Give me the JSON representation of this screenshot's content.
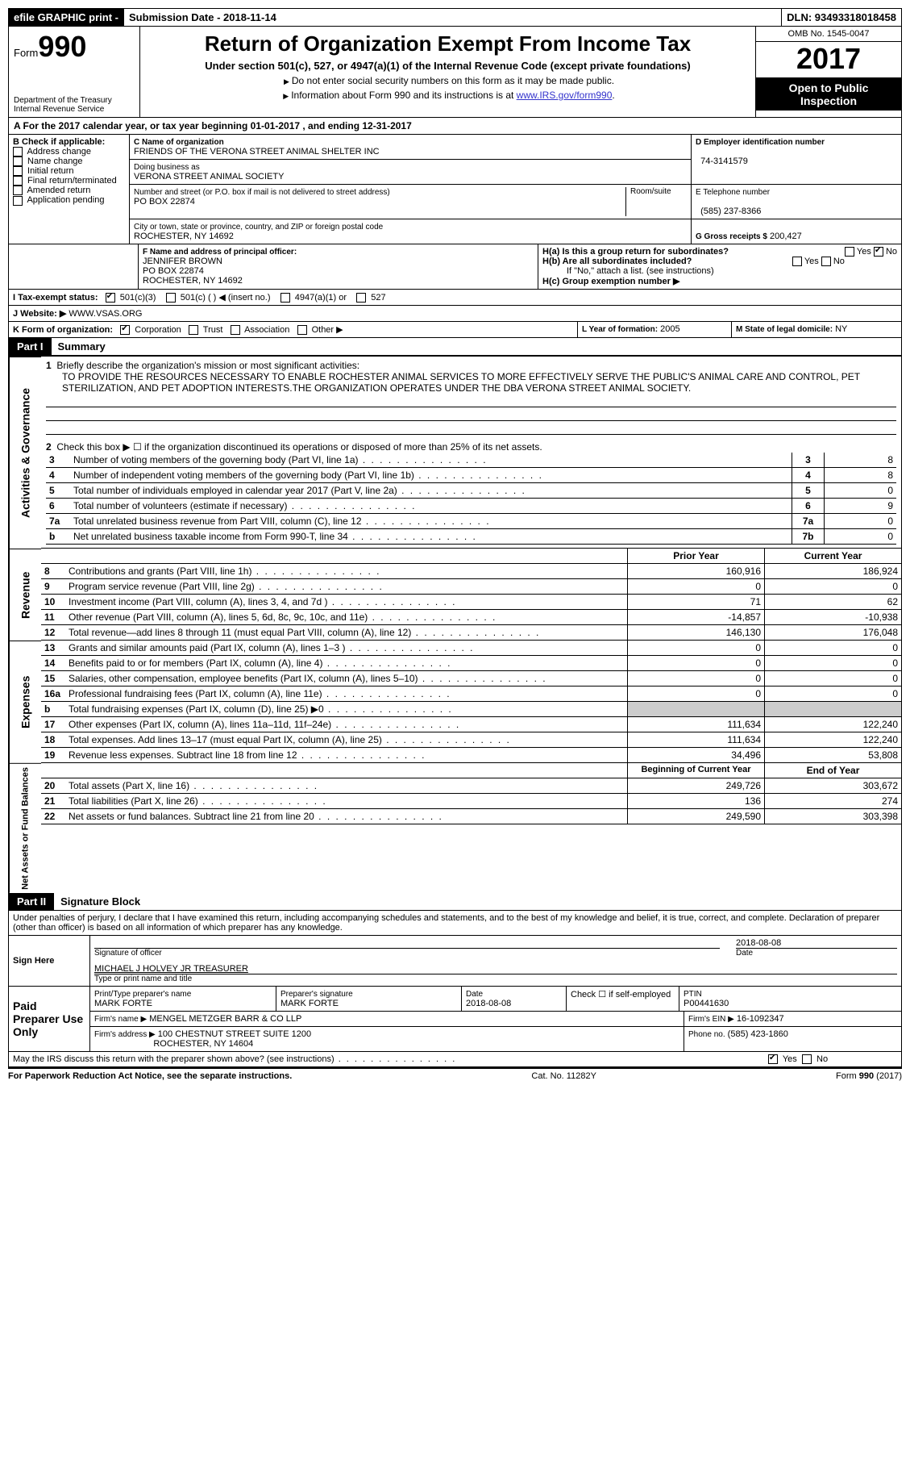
{
  "topbar": {
    "efile": "efile GRAPHIC print -",
    "submission": "Submission Date - 2018-11-14",
    "dln": "DLN: 93493318018458"
  },
  "header": {
    "form_label": "Form",
    "form_no": "990",
    "dept1": "Department of the Treasury",
    "dept2": "Internal Revenue Service",
    "title": "Return of Organization Exempt From Income Tax",
    "subtitle": "Under section 501(c), 527, or 4947(a)(1) of the Internal Revenue Code (except private foundations)",
    "note1": "Do not enter social security numbers on this form as it may be made public.",
    "note2": "Information about Form 990 and its instructions is at ",
    "link": "www.IRS.gov/form990",
    "omb": "OMB No. 1545-0047",
    "year": "2017",
    "open1": "Open to Public",
    "open2": "Inspection"
  },
  "secA": "A   For the 2017 calendar year, or tax year beginning 01-01-2017    , and ending 12-31-2017",
  "boxB": {
    "title": "B Check if applicable:",
    "opts": [
      "Address change",
      "Name change",
      "Initial return",
      "Final return/terminated",
      "Amended return",
      "Application pending"
    ]
  },
  "boxC": {
    "label_name": "C Name of organization",
    "name": "FRIENDS OF THE VERONA STREET ANIMAL SHELTER INC",
    "label_dba": "Doing business as",
    "dba": "VERONA STREET ANIMAL SOCIETY",
    "label_addr": "Number and street (or P.O. box if mail is not delivered to street address)",
    "room": "Room/suite",
    "addr": "PO BOX 22874",
    "label_city": "City or town, state or province, country, and ZIP or foreign postal code",
    "city": "ROCHESTER, NY  14692"
  },
  "boxD": {
    "label": "D Employer identification number",
    "val": "74-3141579"
  },
  "boxE": {
    "label": "E Telephone number",
    "val": "(585) 237-8366"
  },
  "boxG": {
    "label": "G Gross receipts $",
    "val": "200,427"
  },
  "boxF": {
    "label": "F  Name and address of principal officer:",
    "name": "JENNIFER BROWN",
    "addr1": "PO BOX 22874",
    "addr2": "ROCHESTER, NY  14692"
  },
  "boxH": {
    "a": "H(a)  Is this a group return for subordinates?",
    "b": "H(b)  Are all subordinates included?",
    "bnote": "If \"No,\" attach a list. (see instructions)",
    "c": "H(c)  Group exemption number ▶",
    "yes": "Yes",
    "no": "No"
  },
  "rowI": {
    "label": "I  Tax-exempt status:",
    "o1": "501(c)(3)",
    "o2": "501(c) (   ) ◀ (insert no.)",
    "o3": "4947(a)(1) or",
    "o4": "527"
  },
  "rowJ": {
    "label": "J  Website: ▶",
    "val": "WWW.VSAS.ORG"
  },
  "rowK": {
    "label": "K Form of organization:",
    "o1": "Corporation",
    "o2": "Trust",
    "o3": "Association",
    "o4": "Other ▶"
  },
  "rowL": {
    "label": "L Year of formation:",
    "val": "2005"
  },
  "rowM": {
    "label": "M State of legal domicile:",
    "val": "NY"
  },
  "part1": {
    "tag": "Part I",
    "title": "Summary"
  },
  "side_labels": {
    "ag": "Activities & Governance",
    "rev": "Revenue",
    "exp": "Expenses",
    "na": "Net Assets or\nFund Balances"
  },
  "line1": {
    "n": "1",
    "text": "Briefly describe the organization's mission or most significant activities:",
    "mission": "TO PROVIDE THE RESOURCES NECESSARY TO ENABLE ROCHESTER ANIMAL SERVICES TO MORE EFFECTIVELY SERVE THE PUBLIC'S ANIMAL CARE AND CONTROL, PET STERILIZATION, AND PET ADOPTION INTERESTS.THE ORGANIZATION OPERATES UNDER THE DBA VERONA STREET ANIMAL SOCIETY."
  },
  "line2": {
    "n": "2",
    "text": "Check this box ▶ ☐  if the organization discontinued its operations or disposed of more than 25% of its net assets."
  },
  "lines_gov": [
    {
      "n": "3",
      "text": "Number of voting members of the governing body (Part VI, line 1a)",
      "box": "3",
      "val": "8"
    },
    {
      "n": "4",
      "text": "Number of independent voting members of the governing body (Part VI, line 1b)",
      "box": "4",
      "val": "8"
    },
    {
      "n": "5",
      "text": "Total number of individuals employed in calendar year 2017 (Part V, line 2a)",
      "box": "5",
      "val": "0"
    },
    {
      "n": "6",
      "text": "Total number of volunteers (estimate if necessary)",
      "box": "6",
      "val": "9"
    },
    {
      "n": "7a",
      "text": "Total unrelated business revenue from Part VIII, column (C), line 12",
      "box": "7a",
      "val": "0"
    },
    {
      "n": "b",
      "text": "Net unrelated business taxable income from Form 990-T, line 34",
      "box": "7b",
      "val": "0"
    }
  ],
  "col_hdrs": {
    "py": "Prior Year",
    "cy": "Current Year"
  },
  "lines_rev": [
    {
      "n": "8",
      "text": "Contributions and grants (Part VIII, line 1h)",
      "py": "160,916",
      "cy": "186,924"
    },
    {
      "n": "9",
      "text": "Program service revenue (Part VIII, line 2g)",
      "py": "0",
      "cy": "0"
    },
    {
      "n": "10",
      "text": "Investment income (Part VIII, column (A), lines 3, 4, and 7d )",
      "py": "71",
      "cy": "62"
    },
    {
      "n": "11",
      "text": "Other revenue (Part VIII, column (A), lines 5, 6d, 8c, 9c, 10c, and 11e)",
      "py": "-14,857",
      "cy": "-10,938"
    },
    {
      "n": "12",
      "text": "Total revenue—add lines 8 through 11 (must equal Part VIII, column (A), line 12)",
      "py": "146,130",
      "cy": "176,048"
    }
  ],
  "lines_exp": [
    {
      "n": "13",
      "text": "Grants and similar amounts paid (Part IX, column (A), lines 1–3 )",
      "py": "0",
      "cy": "0"
    },
    {
      "n": "14",
      "text": "Benefits paid to or for members (Part IX, column (A), line 4)",
      "py": "0",
      "cy": "0"
    },
    {
      "n": "15",
      "text": "Salaries, other compensation, employee benefits (Part IX, column (A), lines 5–10)",
      "py": "0",
      "cy": "0"
    },
    {
      "n": "16a",
      "text": "Professional fundraising fees (Part IX, column (A), line 11e)",
      "py": "0",
      "cy": "0"
    },
    {
      "n": "b",
      "text": "Total fundraising expenses (Part IX, column (D), line 25) ▶0",
      "py": "",
      "cy": "",
      "shade": true
    },
    {
      "n": "17",
      "text": "Other expenses (Part IX, column (A), lines 11a–11d, 11f–24e)",
      "py": "111,634",
      "cy": "122,240"
    },
    {
      "n": "18",
      "text": "Total expenses. Add lines 13–17 (must equal Part IX, column (A), line 25)",
      "py": "111,634",
      "cy": "122,240"
    },
    {
      "n": "19",
      "text": "Revenue less expenses. Subtract line 18 from line 12",
      "py": "34,496",
      "cy": "53,808"
    }
  ],
  "col_hdrs2": {
    "py": "Beginning of Current Year",
    "cy": "End of Year"
  },
  "lines_na": [
    {
      "n": "20",
      "text": "Total assets (Part X, line 16)",
      "py": "249,726",
      "cy": "303,672"
    },
    {
      "n": "21",
      "text": "Total liabilities (Part X, line 26)",
      "py": "136",
      "cy": "274"
    },
    {
      "n": "22",
      "text": "Net assets or fund balances. Subtract line 21 from line 20",
      "py": "249,590",
      "cy": "303,398"
    }
  ],
  "part2": {
    "tag": "Part II",
    "title": "Signature Block"
  },
  "perjury": "Under penalties of perjury, I declare that I have examined this return, including accompanying schedules and statements, and to the best of my knowledge and belief, it is true, correct, and complete. Declaration of preparer (other than officer) is based on all information of which preparer has any knowledge.",
  "sign": {
    "here": "Sign Here",
    "sigoff": "Signature of officer",
    "date": "2018-08-08",
    "datelbl": "Date",
    "name": "MICHAEL J HOLVEY JR TREASURER",
    "namelbl": "Type or print name and title"
  },
  "paid": {
    "label": "Paid Preparer Use Only",
    "h1": "Print/Type preparer's name",
    "h2": "Preparer's signature",
    "h3": "Date",
    "h4": "Check ☐ if self-employed",
    "h5": "PTIN",
    "name": "MARK FORTE",
    "sig": "MARK FORTE",
    "date": "2018-08-08",
    "ptin": "P00441630",
    "firmname_lbl": "Firm's name    ▶",
    "firmname": "MENGEL METZGER BARR & CO LLP",
    "ein_lbl": "Firm's EIN ▶",
    "ein": "16-1092347",
    "firmaddr_lbl": "Firm's address ▶",
    "firmaddr1": "100 CHESTNUT STREET SUITE 1200",
    "firmaddr2": "ROCHESTER, NY  14604",
    "phone_lbl": "Phone no.",
    "phone": "(585) 423-1860"
  },
  "discuss": {
    "text": "May the IRS discuss this return with the preparer shown above? (see instructions)",
    "yes": "Yes",
    "no": "No"
  },
  "footer": {
    "l": "For Paperwork Reduction Act Notice, see the separate instructions.",
    "c": "Cat. No. 11282Y",
    "r": "Form 990 (2017)"
  }
}
